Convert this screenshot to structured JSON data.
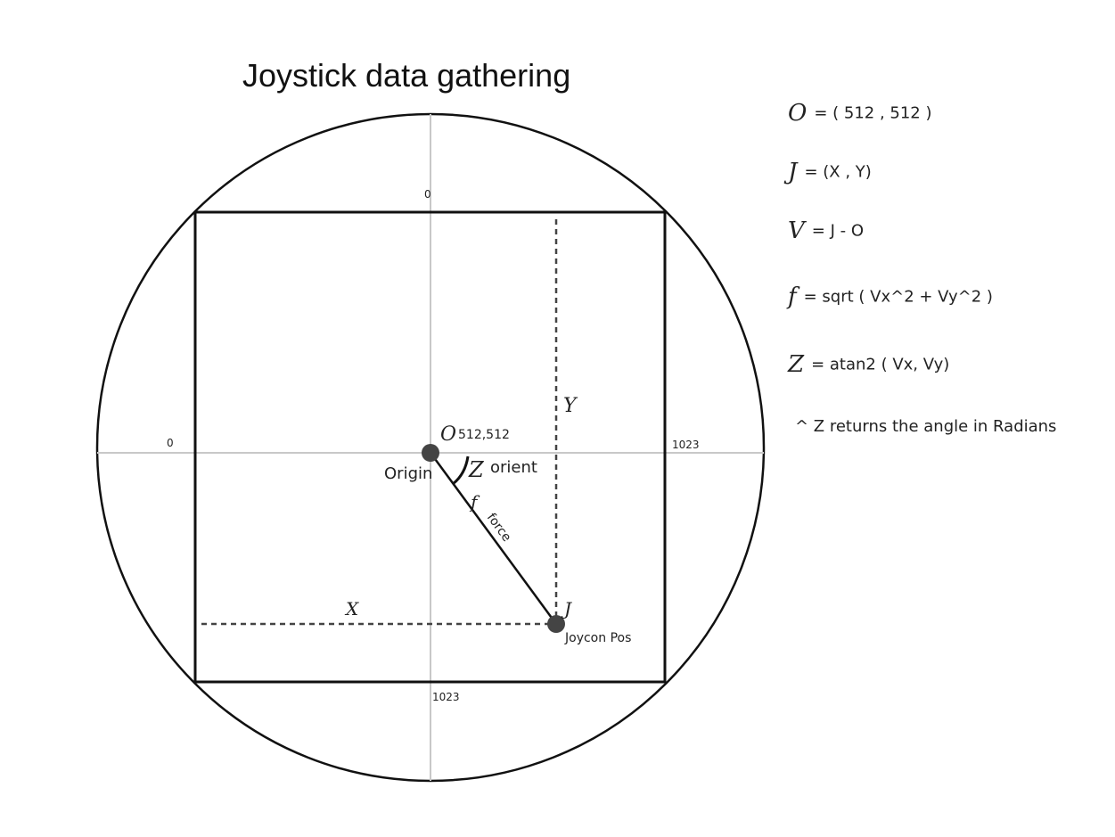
{
  "title": "Joystick data gathering",
  "equations": [
    {
      "symbol": "O",
      "rhs": "= ( 512 , 512 )"
    },
    {
      "symbol": "J",
      "rhs": "= (X , Y)"
    },
    {
      "symbol": "V",
      "rhs": "= J  -  O"
    },
    {
      "symbol": "f",
      "rhs": "= sqrt ( Vx^2 + Vy^2 )"
    },
    {
      "symbol": "Z",
      "rhs": "= atan2 ( Vx,  Vy)"
    }
  ],
  "note": "^ Z returns the angle in Radians",
  "diagram": {
    "tick_top": "0",
    "tick_left": "0",
    "tick_right": "1023",
    "tick_bottom": "1023",
    "origin_symbol": "O",
    "origin_coords": "512,512",
    "origin_label": "Origin",
    "angle_symbol": "Z",
    "angle_label": "orient",
    "force_symbol": "f",
    "force_label": "force",
    "joycon_symbol": "J",
    "joycon_label": "Joycon Pos",
    "x_label": "X",
    "y_label": "Y"
  }
}
